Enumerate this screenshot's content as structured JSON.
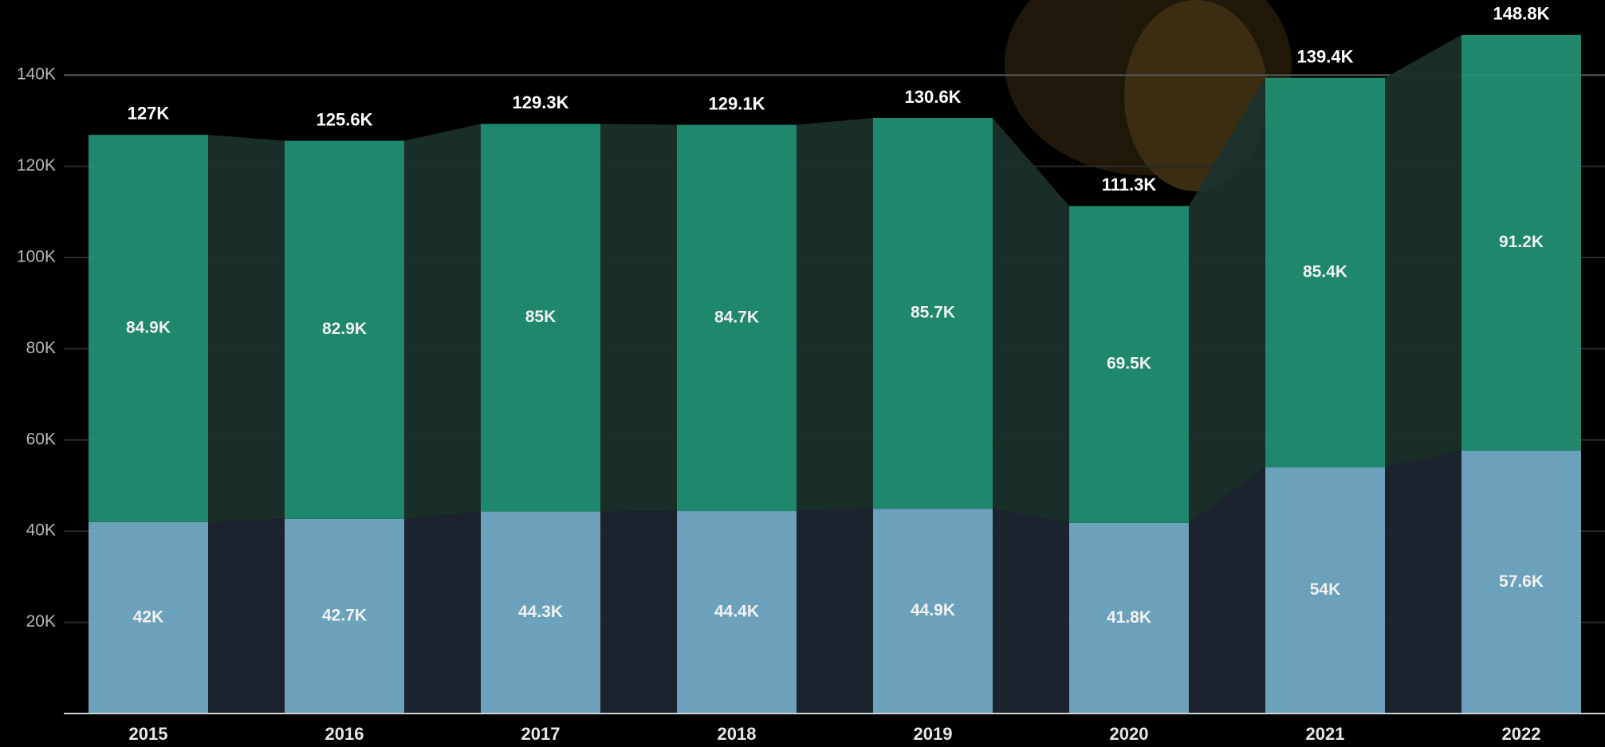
{
  "chart_data": {
    "type": "bar",
    "stacked": true,
    "categories": [
      "2015",
      "2016",
      "2017",
      "2018",
      "2019",
      "2020",
      "2021",
      "2022"
    ],
    "series": [
      {
        "color": "#73adc8",
        "values": [
          42000,
          42700,
          44300,
          44400,
          44900,
          41800,
          54000,
          57600
        ],
        "value_labels": [
          "42K",
          "42.7K",
          "44.3K",
          "44.4K",
          "44.9K",
          "41.8K",
          "54K",
          "57.6K"
        ]
      },
      {
        "color": "#219174",
        "values": [
          84900,
          82900,
          85000,
          84700,
          85700,
          69500,
          85400,
          91200
        ],
        "value_labels": [
          "84.9K",
          "82.9K",
          "85K",
          "84.7K",
          "85.7K",
          "69.5K",
          "85.4K",
          "91.2K"
        ]
      }
    ],
    "totals": {
      "values": [
        127000,
        125600,
        129300,
        129100,
        130600,
        111300,
        139400,
        148800
      ],
      "value_labels": [
        "127K",
        "125.6K",
        "129.3K",
        "129.1K",
        "130.6K",
        "111.3K",
        "139.4K",
        "148.8K"
      ]
    },
    "ylim": [
      0,
      150000
    ],
    "yticks": [
      {
        "value": 20000,
        "label": "20K"
      },
      {
        "value": 40000,
        "label": "40K"
      },
      {
        "value": 60000,
        "label": "60K"
      },
      {
        "value": 80000,
        "label": "80K"
      },
      {
        "value": 100000,
        "label": "100K"
      },
      {
        "value": 120000,
        "label": "120K"
      },
      {
        "value": 140000,
        "label": "140K"
      }
    ],
    "grid": true
  }
}
